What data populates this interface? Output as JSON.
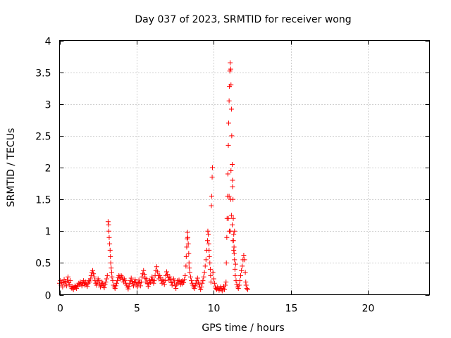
{
  "chart_data": {
    "type": "scatter",
    "title": "Day 037 of 2023, SRMTID for receiver wong",
    "xlabel": "GPS time / hours",
    "ylabel": "SRMTID / TECUs",
    "xlim": [
      0,
      24
    ],
    "ylim": [
      0,
      4
    ],
    "grid": true,
    "marker": "+",
    "color": "#ff0000",
    "x_ticks": [
      {
        "value": 0,
        "label": "0"
      },
      {
        "value": 5,
        "label": "5"
      },
      {
        "value": 10,
        "label": "10"
      },
      {
        "value": 15,
        "label": "15"
      },
      {
        "value": 20,
        "label": "20"
      }
    ],
    "y_ticks": [
      {
        "value": 0,
        "label": "0"
      },
      {
        "value": 0.5,
        "label": "0.5"
      },
      {
        "value": 1,
        "label": "1"
      },
      {
        "value": 1.5,
        "label": "1.5"
      },
      {
        "value": 2,
        "label": "2"
      },
      {
        "value": 2.5,
        "label": "2.5"
      },
      {
        "value": 3,
        "label": "3"
      },
      {
        "value": 3.5,
        "label": "3.5"
      },
      {
        "value": 4,
        "label": "4"
      }
    ],
    "series": [
      {
        "name": "wong",
        "points": [
          [
            0.0,
            0.18
          ],
          [
            0.05,
            0.22
          ],
          [
            0.1,
            0.15
          ],
          [
            0.15,
            0.2
          ],
          [
            0.2,
            0.12
          ],
          [
            0.25,
            0.19
          ],
          [
            0.3,
            0.24
          ],
          [
            0.35,
            0.17
          ],
          [
            0.4,
            0.21
          ],
          [
            0.45,
            0.14
          ],
          [
            0.5,
            0.23
          ],
          [
            0.55,
            0.28
          ],
          [
            0.6,
            0.19
          ],
          [
            0.65,
            0.16
          ],
          [
            0.7,
            0.22
          ],
          [
            0.75,
            0.12
          ],
          [
            0.8,
            0.1
          ],
          [
            0.85,
            0.13
          ],
          [
            0.9,
            0.08
          ],
          [
            0.95,
            0.11
          ],
          [
            1.0,
            0.14
          ],
          [
            1.05,
            0.12
          ],
          [
            1.1,
            0.1
          ],
          [
            1.15,
            0.15
          ],
          [
            1.2,
            0.13
          ],
          [
            1.25,
            0.18
          ],
          [
            1.3,
            0.16
          ],
          [
            1.35,
            0.2
          ],
          [
            1.4,
            0.17
          ],
          [
            1.45,
            0.14
          ],
          [
            1.5,
            0.19
          ],
          [
            1.55,
            0.22
          ],
          [
            1.6,
            0.18
          ],
          [
            1.65,
            0.15
          ],
          [
            1.7,
            0.2
          ],
          [
            1.75,
            0.16
          ],
          [
            1.8,
            0.13
          ],
          [
            1.85,
            0.18
          ],
          [
            1.9,
            0.22
          ],
          [
            1.95,
            0.2
          ],
          [
            2.0,
            0.25
          ],
          [
            2.05,
            0.3
          ],
          [
            2.1,
            0.35
          ],
          [
            2.15,
            0.38
          ],
          [
            2.2,
            0.33
          ],
          [
            2.25,
            0.28
          ],
          [
            2.3,
            0.22
          ],
          [
            2.35,
            0.18
          ],
          [
            2.4,
            0.15
          ],
          [
            2.45,
            0.2
          ],
          [
            2.5,
            0.25
          ],
          [
            2.55,
            0.22
          ],
          [
            2.6,
            0.17
          ],
          [
            2.65,
            0.12
          ],
          [
            2.7,
            0.15
          ],
          [
            2.75,
            0.2
          ],
          [
            2.8,
            0.18
          ],
          [
            2.85,
            0.14
          ],
          [
            2.9,
            0.11
          ],
          [
            2.95,
            0.16
          ],
          [
            3.0,
            0.2
          ],
          [
            3.05,
            0.25
          ],
          [
            3.1,
            0.3
          ],
          [
            3.15,
            1.15
          ],
          [
            3.18,
            1.1
          ],
          [
            3.2,
            1.0
          ],
          [
            3.22,
            0.9
          ],
          [
            3.25,
            0.8
          ],
          [
            3.28,
            0.7
          ],
          [
            3.3,
            0.6
          ],
          [
            3.32,
            0.5
          ],
          [
            3.35,
            0.42
          ],
          [
            3.38,
            0.35
          ],
          [
            3.4,
            0.28
          ],
          [
            3.45,
            0.22
          ],
          [
            3.5,
            0.15
          ],
          [
            3.55,
            0.12
          ],
          [
            3.6,
            0.1
          ],
          [
            3.65,
            0.14
          ],
          [
            3.7,
            0.18
          ],
          [
            3.75,
            0.22
          ],
          [
            3.8,
            0.27
          ],
          [
            3.85,
            0.3
          ],
          [
            3.9,
            0.28
          ],
          [
            3.95,
            0.25
          ],
          [
            4.0,
            0.3
          ],
          [
            4.05,
            0.28
          ],
          [
            4.1,
            0.24
          ],
          [
            4.15,
            0.2
          ],
          [
            4.2,
            0.25
          ],
          [
            4.25,
            0.22
          ],
          [
            4.3,
            0.18
          ],
          [
            4.35,
            0.15
          ],
          [
            4.4,
            0.12
          ],
          [
            4.45,
            0.09
          ],
          [
            4.5,
            0.13
          ],
          [
            4.55,
            0.18
          ],
          [
            4.6,
            0.22
          ],
          [
            4.65,
            0.26
          ],
          [
            4.7,
            0.21
          ],
          [
            4.75,
            0.17
          ],
          [
            4.8,
            0.14
          ],
          [
            4.85,
            0.19
          ],
          [
            4.9,
            0.24
          ],
          [
            4.95,
            0.2
          ],
          [
            5.0,
            0.16
          ],
          [
            5.05,
            0.12
          ],
          [
            5.1,
            0.18
          ],
          [
            5.15,
            0.23
          ],
          [
            5.2,
            0.19
          ],
          [
            5.25,
            0.14
          ],
          [
            5.3,
            0.2
          ],
          [
            5.35,
            0.28
          ],
          [
            5.4,
            0.33
          ],
          [
            5.45,
            0.38
          ],
          [
            5.5,
            0.32
          ],
          [
            5.55,
            0.26
          ],
          [
            5.6,
            0.2
          ],
          [
            5.65,
            0.25
          ],
          [
            5.7,
            0.18
          ],
          [
            5.75,
            0.13
          ],
          [
            5.8,
            0.17
          ],
          [
            5.85,
            0.22
          ],
          [
            5.9,
            0.19
          ],
          [
            5.95,
            0.24
          ],
          [
            6.0,
            0.28
          ],
          [
            6.05,
            0.23
          ],
          [
            6.1,
            0.18
          ],
          [
            6.15,
            0.22
          ],
          [
            6.2,
            0.3
          ],
          [
            6.25,
            0.38
          ],
          [
            6.3,
            0.44
          ],
          [
            6.35,
            0.36
          ],
          [
            6.4,
            0.3
          ],
          [
            6.45,
            0.25
          ],
          [
            6.5,
            0.3
          ],
          [
            6.55,
            0.27
          ],
          [
            6.6,
            0.22
          ],
          [
            6.65,
            0.18
          ],
          [
            6.7,
            0.24
          ],
          [
            6.75,
            0.2
          ],
          [
            6.8,
            0.16
          ],
          [
            6.85,
            0.22
          ],
          [
            6.9,
            0.3
          ],
          [
            6.95,
            0.36
          ],
          [
            7.0,
            0.32
          ],
          [
            7.05,
            0.27
          ],
          [
            7.1,
            0.23
          ],
          [
            7.15,
            0.28
          ],
          [
            7.2,
            0.24
          ],
          [
            7.25,
            0.19
          ],
          [
            7.3,
            0.15
          ],
          [
            7.35,
            0.2
          ],
          [
            7.4,
            0.25
          ],
          [
            7.45,
            0.2
          ],
          [
            7.5,
            0.14
          ],
          [
            7.55,
            0.1
          ],
          [
            7.6,
            0.16
          ],
          [
            7.65,
            0.22
          ],
          [
            7.7,
            0.18
          ],
          [
            7.75,
            0.23
          ],
          [
            7.8,
            0.2
          ],
          [
            7.85,
            0.16
          ],
          [
            7.9,
            0.21
          ],
          [
            7.95,
            0.17
          ],
          [
            8.0,
            0.22
          ],
          [
            8.05,
            0.19
          ],
          [
            8.1,
            0.24
          ],
          [
            8.15,
            0.3
          ],
          [
            8.2,
            0.45
          ],
          [
            8.22,
            0.6
          ],
          [
            8.25,
            0.75
          ],
          [
            8.28,
            0.88
          ],
          [
            8.3,
            0.98
          ],
          [
            8.32,
            0.9
          ],
          [
            8.35,
            0.8
          ],
          [
            8.38,
            0.65
          ],
          [
            8.4,
            0.5
          ],
          [
            8.42,
            0.42
          ],
          [
            8.45,
            0.35
          ],
          [
            8.5,
            0.28
          ],
          [
            8.55,
            0.22
          ],
          [
            8.6,
            0.18
          ],
          [
            8.65,
            0.15
          ],
          [
            8.7,
            0.12
          ],
          [
            8.75,
            0.1
          ],
          [
            8.8,
            0.14
          ],
          [
            8.85,
            0.18
          ],
          [
            8.9,
            0.22
          ],
          [
            8.95,
            0.26
          ],
          [
            9.0,
            0.2
          ],
          [
            9.05,
            0.16
          ],
          [
            9.1,
            0.12
          ],
          [
            9.15,
            0.08
          ],
          [
            9.2,
            0.12
          ],
          [
            9.25,
            0.18
          ],
          [
            9.3,
            0.22
          ],
          [
            9.35,
            0.28
          ],
          [
            9.4,
            0.35
          ],
          [
            9.45,
            0.45
          ],
          [
            9.5,
            0.55
          ],
          [
            9.55,
            0.7
          ],
          [
            9.6,
            0.85
          ],
          [
            9.62,
            1.0
          ],
          [
            9.65,
            0.95
          ],
          [
            9.68,
            0.8
          ],
          [
            9.7,
            0.7
          ],
          [
            9.72,
            0.6
          ],
          [
            9.75,
            0.5
          ],
          [
            9.78,
            0.4
          ],
          [
            9.8,
            0.3
          ],
          [
            9.82,
            0.2
          ],
          [
            9.85,
            1.4
          ],
          [
            9.87,
            1.55
          ],
          [
            9.9,
            1.85
          ],
          [
            9.92,
            2.0
          ],
          [
            9.95,
            0.35
          ],
          [
            10.0,
            0.25
          ],
          [
            10.05,
            0.18
          ],
          [
            10.1,
            0.12
          ],
          [
            10.15,
            0.1
          ],
          [
            10.2,
            0.08
          ],
          [
            10.25,
            0.12
          ],
          [
            10.3,
            0.1
          ],
          [
            10.35,
            0.07
          ],
          [
            10.4,
            0.1
          ],
          [
            10.45,
            0.12
          ],
          [
            10.5,
            0.09
          ],
          [
            10.55,
            0.06
          ],
          [
            10.6,
            0.1
          ],
          [
            10.65,
            0.13
          ],
          [
            10.7,
            0.08
          ],
          [
            10.75,
            0.15
          ],
          [
            10.8,
            0.2
          ],
          [
            10.82,
            0.5
          ],
          [
            10.85,
            0.9
          ],
          [
            10.87,
            1.2
          ],
          [
            10.9,
            1.55
          ],
          [
            10.92,
            1.9
          ],
          [
            10.95,
            2.35
          ],
          [
            10.97,
            2.7
          ],
          [
            11.0,
            3.05
          ],
          [
            11.02,
            3.28
          ],
          [
            11.05,
            3.52
          ],
          [
            11.07,
            3.65
          ],
          [
            11.1,
            3.55
          ],
          [
            11.12,
            3.3
          ],
          [
            11.15,
            2.92
          ],
          [
            11.17,
            2.5
          ],
          [
            11.2,
            2.05
          ],
          [
            11.22,
            1.7
          ],
          [
            11.25,
            1.5
          ],
          [
            11.27,
            1.2
          ],
          [
            11.3,
            0.95
          ],
          [
            11.32,
            0.75
          ],
          [
            11.35,
            0.55
          ],
          [
            11.38,
            0.4
          ],
          [
            11.4,
            0.3
          ],
          [
            11.45,
            0.22
          ],
          [
            11.5,
            0.16
          ],
          [
            11.55,
            0.12
          ],
          [
            11.6,
            0.1
          ],
          [
            11.65,
            0.15
          ],
          [
            11.7,
            0.22
          ],
          [
            11.75,
            0.3
          ],
          [
            11.8,
            0.38
          ],
          [
            11.85,
            0.45
          ],
          [
            11.9,
            0.55
          ],
          [
            11.95,
            0.62
          ],
          [
            12.0,
            0.55
          ],
          [
            12.05,
            0.35
          ],
          [
            12.08,
            0.2
          ],
          [
            12.1,
            0.15
          ],
          [
            12.15,
            0.1
          ],
          [
            12.2,
            0.08
          ],
          [
            11.1,
            1.5
          ],
          [
            11.15,
            1.25
          ],
          [
            11.22,
            1.8
          ],
          [
            11.28,
            0.85
          ],
          [
            11.33,
            0.65
          ],
          [
            11.42,
            0.48
          ],
          [
            11.02,
            1.0
          ],
          [
            11.08,
            1.0
          ],
          [
            11.2,
            1.1
          ],
          [
            11.25,
            0.85
          ],
          [
            11.3,
            0.7
          ],
          [
            11.35,
            1.0
          ],
          [
            11.0,
            1.55
          ],
          [
            11.12,
            1.95
          ],
          [
            10.95,
            1.2
          ]
        ]
      }
    ]
  }
}
